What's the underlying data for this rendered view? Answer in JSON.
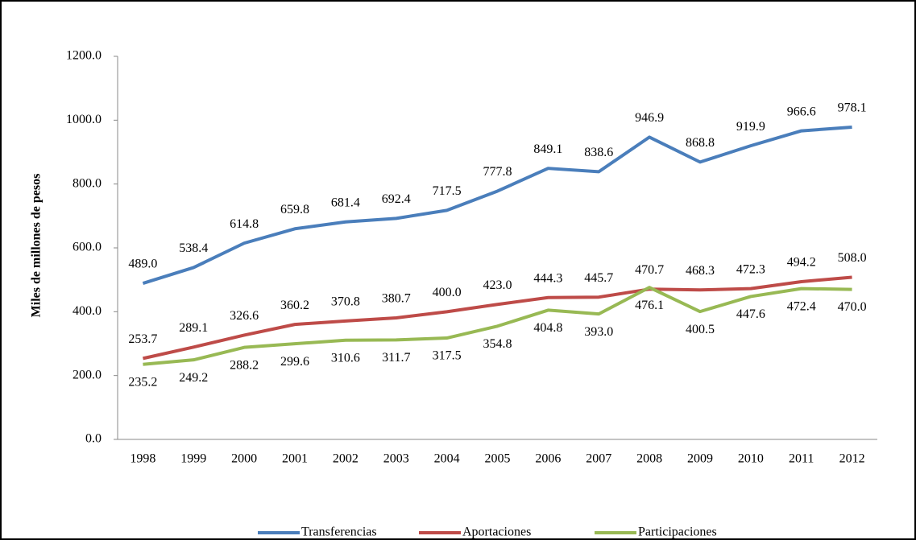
{
  "chart_data": {
    "type": "line",
    "y_label": "Miles de millones de pesos",
    "categories": [
      "1998",
      "1999",
      "2000",
      "2001",
      "2002",
      "2003",
      "2004",
      "2005",
      "2006",
      "2007",
      "2008",
      "2009",
      "2010",
      "2011",
      "2012"
    ],
    "series": [
      {
        "name": "Transferencias",
        "color": "#4a7ebb",
        "values": [
          489.0,
          538.4,
          614.8,
          659.8,
          681.4,
          692.4,
          717.5,
          777.8,
          849.1,
          838.6,
          946.9,
          868.8,
          919.9,
          966.6,
          978.1
        ],
        "value_labels": [
          "489.0",
          "538.4",
          "614.8",
          "659.8",
          "681.4",
          "692.4",
          "717.5",
          "777.8",
          "849.1",
          "838.6",
          "946.9",
          "868.8",
          "919.9",
          "966.6",
          "978.1"
        ]
      },
      {
        "name": "Aportaciones",
        "color": "#be4b48",
        "values": [
          253.7,
          289.1,
          326.6,
          360.2,
          370.8,
          380.7,
          400.0,
          423.0,
          444.3,
          445.7,
          470.7,
          468.3,
          472.3,
          494.2,
          508.0
        ],
        "value_labels": [
          "253.7",
          "289.1",
          "326.6",
          "360.2",
          "370.8",
          "380.7",
          "400.0",
          "423.0",
          "444.3",
          "445.7",
          "470.7",
          "468.3",
          "472.3",
          "494.2",
          "508.0"
        ]
      },
      {
        "name": "Participaciones",
        "color": "#98b954",
        "values": [
          235.2,
          249.2,
          288.2,
          299.6,
          310.6,
          311.7,
          317.5,
          354.8,
          404.8,
          393.0,
          476.1,
          400.5,
          447.6,
          472.4,
          470.0
        ],
        "value_labels": [
          "235.2",
          "249.2",
          "288.2",
          "299.6",
          "310.6",
          "311.7",
          "317.5",
          "354.8",
          "404.8",
          "393.0",
          "476.1",
          "400.5",
          "447.6",
          "472.4",
          "470.0"
        ]
      }
    ],
    "ylim": [
      0,
      1200
    ],
    "yticks": [
      {
        "value": 0,
        "label": "0.0"
      },
      {
        "value": 200,
        "label": "200.0"
      },
      {
        "value": 400,
        "label": "400.0"
      },
      {
        "value": 600,
        "label": "600.0"
      },
      {
        "value": 800,
        "label": "800.0"
      },
      {
        "value": 1000,
        "label": "1000.0"
      },
      {
        "value": 1200,
        "label": "1200.0"
      }
    ],
    "grid": false,
    "legend": "bottom"
  }
}
